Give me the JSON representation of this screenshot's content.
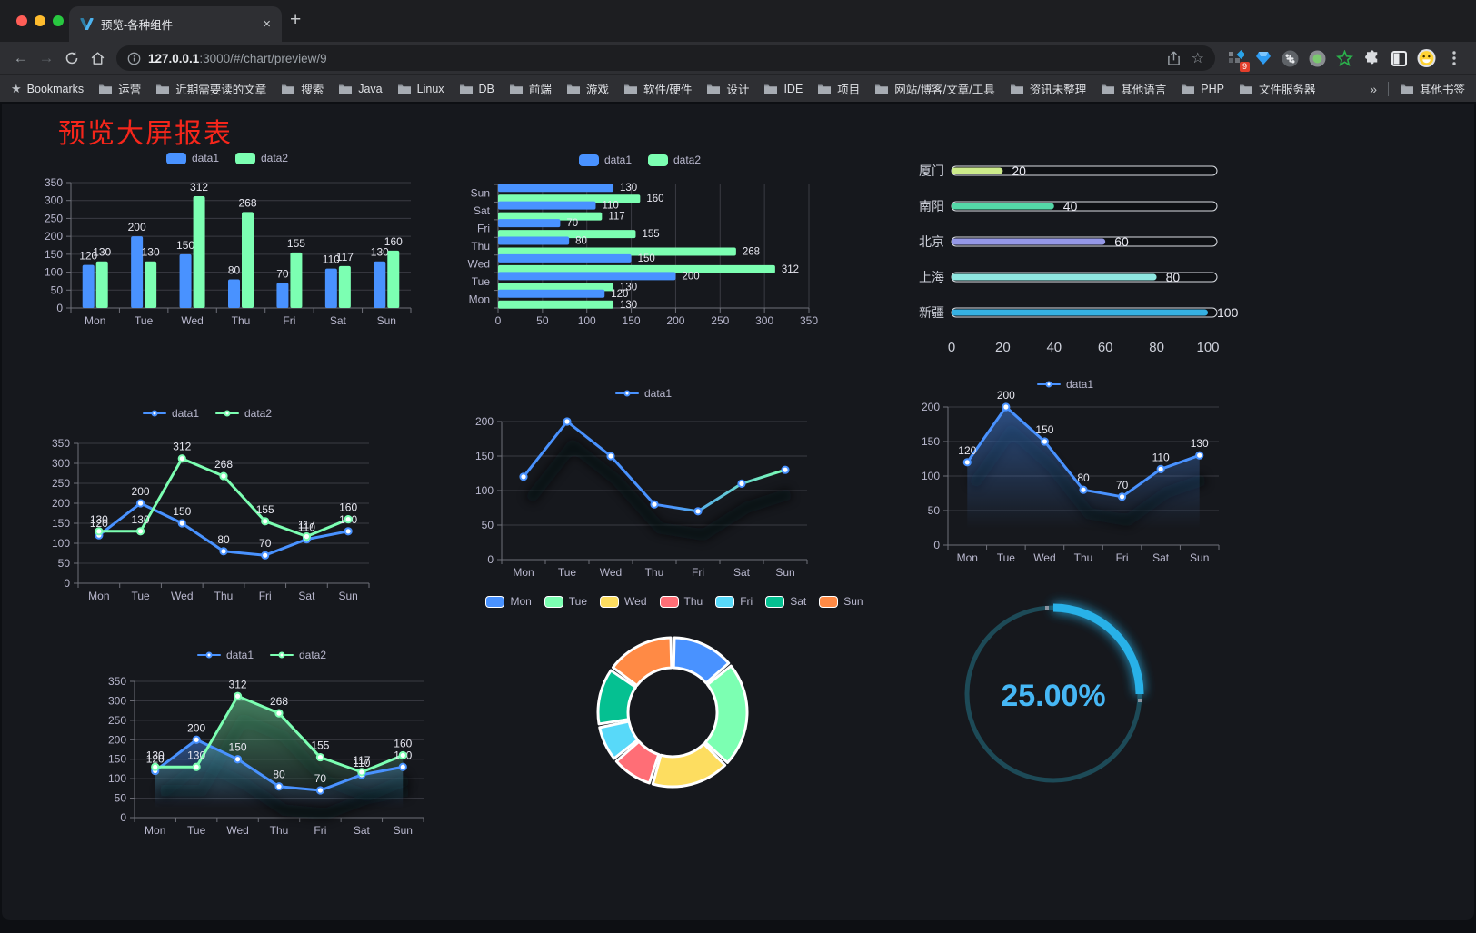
{
  "browser": {
    "tab_title": "预览-各种组件",
    "url_host": "127.0.0.1",
    "url_rest": ":3000/#/chart/preview/9",
    "extension_badge": "9",
    "bookmarks_label": "Bookmarks",
    "bookmarks": [
      "运营",
      "近期需要读的文章",
      "搜索",
      "Java",
      "Linux",
      "DB",
      "前端",
      "游戏",
      "软件/硬件",
      "设计",
      "IDE",
      "项目",
      "网站/博客/文章/工具",
      "资讯未整理",
      "其他语言",
      "PHP",
      "文件服务器"
    ],
    "bookmarks_overflow": "»",
    "other_bookmarks": "其他书签"
  },
  "page": {
    "title": "预览大屏报表",
    "title_color": "#f5261b"
  },
  "chart_data": [
    {
      "type": "bar",
      "categories": [
        "Mon",
        "Tue",
        "Wed",
        "Thu",
        "Fri",
        "Sat",
        "Sun"
      ],
      "series": [
        {
          "name": "data1",
          "color": "#4992ff",
          "values": [
            120,
            200,
            150,
            80,
            70,
            110,
            130
          ]
        },
        {
          "name": "data2",
          "color": "#7cffb2",
          "values": [
            130,
            130,
            312,
            268,
            155,
            117,
            160
          ]
        }
      ],
      "ylim": [
        0,
        350
      ],
      "ytick": 50,
      "grid": true,
      "legend_position": "top"
    },
    {
      "type": "hbar",
      "categories": [
        "Mon",
        "Tue",
        "Wed",
        "Thu",
        "Fri",
        "Sat",
        "Sun"
      ],
      "series": [
        {
          "name": "data1",
          "color": "#4992ff",
          "values": [
            120,
            200,
            150,
            80,
            70,
            110,
            130
          ]
        },
        {
          "name": "data2",
          "color": "#7cffb2",
          "values": [
            130,
            130,
            312,
            268,
            155,
            117,
            160
          ]
        }
      ],
      "xlim": [
        0,
        350
      ],
      "xtick": 50,
      "grid": true,
      "legend_position": "top"
    },
    {
      "type": "progress",
      "categories": [
        "厦门",
        "南阳",
        "北京",
        "上海",
        "新疆"
      ],
      "values": [
        20,
        40,
        60,
        80,
        100
      ],
      "colors": [
        "#cdeb8b",
        "#54d8a8",
        "#9598e7",
        "#8fe7e1",
        "#36b1e3"
      ],
      "xlim": [
        0,
        100
      ],
      "xtick": 20
    },
    {
      "type": "line",
      "categories": [
        "Mon",
        "Tue",
        "Wed",
        "Thu",
        "Fri",
        "Sat",
        "Sun"
      ],
      "series": [
        {
          "name": "data1",
          "color": "#4992ff",
          "values": [
            120,
            200,
            150,
            80,
            70,
            110,
            130
          ]
        },
        {
          "name": "data2",
          "color": "#7cffb2",
          "values": [
            130,
            130,
            312,
            268,
            155,
            117,
            160
          ]
        }
      ],
      "ylim": [
        0,
        350
      ],
      "ytick": 50,
      "labels": true,
      "grid": true,
      "legend_position": "top"
    },
    {
      "type": "line",
      "categories": [
        "Mon",
        "Tue",
        "Wed",
        "Thu",
        "Fri",
        "Sat",
        "Sun"
      ],
      "series": [
        {
          "name": "data1",
          "color": "#4992ff",
          "values": [
            120,
            200,
            150,
            80,
            70,
            110,
            130
          ]
        }
      ],
      "ylim": [
        0,
        200
      ],
      "ytick": 50,
      "labels": false,
      "grid": true,
      "gradient": [
        "#4992ff",
        "#7cffb2"
      ],
      "shadow": true,
      "legend_position": "top"
    },
    {
      "type": "line",
      "categories": [
        "Mon",
        "Tue",
        "Wed",
        "Thu",
        "Fri",
        "Sat",
        "Sun"
      ],
      "series": [
        {
          "name": "data1",
          "color": "#4992ff",
          "values": [
            120,
            200,
            150,
            80,
            70,
            110,
            130
          ]
        }
      ],
      "ylim": [
        0,
        200
      ],
      "ytick": 50,
      "labels": true,
      "area": true,
      "shadow": true,
      "grid": true,
      "legend_position": "top"
    },
    {
      "type": "line",
      "categories": [
        "Mon",
        "Tue",
        "Wed",
        "Thu",
        "Fri",
        "Sat",
        "Sun"
      ],
      "series": [
        {
          "name": "data1",
          "color": "#4992ff",
          "values": [
            120,
            200,
            150,
            80,
            70,
            110,
            130
          ]
        },
        {
          "name": "data2",
          "color": "#7cffb2",
          "values": [
            130,
            130,
            312,
            268,
            155,
            117,
            160
          ]
        }
      ],
      "ylim": [
        0,
        350
      ],
      "ytick": 50,
      "labels": true,
      "area": true,
      "shadow": true,
      "grid": true,
      "legend_position": "top"
    },
    {
      "type": "donut",
      "categories": [
        "Mon",
        "Tue",
        "Wed",
        "Thu",
        "Fri",
        "Sat",
        "Sun"
      ],
      "values": [
        120,
        200,
        150,
        80,
        70,
        110,
        130
      ],
      "colors": [
        "#4992ff",
        "#7cffb2",
        "#fddd60",
        "#ff6e76",
        "#58d9f9",
        "#05c091",
        "#ff8a45"
      ],
      "legend_position": "top"
    },
    {
      "type": "gauge",
      "label": "25.00%",
      "percent": 25,
      "color": "#28b1e8",
      "track": "#1d4a57",
      "text_color": "#46b7f5"
    }
  ]
}
